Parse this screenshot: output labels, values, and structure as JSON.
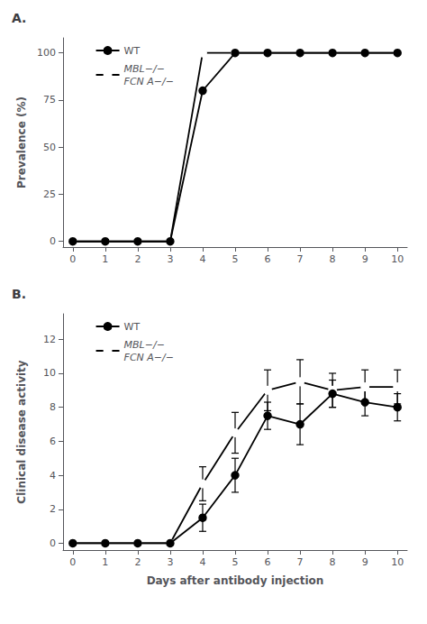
{
  "chart_data": [
    {
      "type": "line",
      "title": "A.",
      "ylabel": "Prevalence (%)",
      "x": [
        0,
        1,
        2,
        3,
        4,
        5,
        6,
        7,
        8,
        9,
        10
      ],
      "series": [
        {
          "name": "WT",
          "color": "black",
          "marker": "circle",
          "values": [
            0,
            0,
            0,
            0,
            80,
            100,
            100,
            100,
            100,
            100,
            100
          ]
        },
        {
          "name": "MBL−/−\nFCN A−/−",
          "color": "black",
          "marker": "open circle",
          "values": [
            0,
            0,
            0,
            0,
            100,
            100,
            100,
            100,
            100,
            100,
            100
          ]
        }
      ],
      "xlim": [
        -0.3,
        10.3
      ],
      "xticks": [
        0,
        1,
        2,
        3,
        4,
        5,
        6,
        7,
        8,
        9,
        10
      ],
      "ylim": [
        -3,
        108
      ],
      "yticks": [
        0,
        25,
        50,
        75,
        100
      ],
      "grid": false,
      "legend": "upper left"
    },
    {
      "type": "line",
      "title": "B.",
      "ylabel": "Clinical disease activity",
      "xlabel": "Days after antibody injection",
      "x": [
        0,
        1,
        2,
        3,
        4,
        5,
        6,
        7,
        8,
        9,
        10
      ],
      "series": [
        {
          "name": "WT",
          "color": "black",
          "marker": "circle",
          "values": [
            0,
            0,
            0,
            0,
            1.5,
            4.0,
            7.5,
            7.0,
            8.8,
            8.3,
            8.0
          ],
          "errors": [
            0,
            0,
            0,
            0,
            0.8,
            1.0,
            0.8,
            1.2,
            0.8,
            0.8,
            0.8
          ]
        },
        {
          "name": "MBL−/−\nFCN A−/−",
          "color": "black",
          "marker": "open circle",
          "values": [
            0,
            0,
            0,
            0,
            3.5,
            6.5,
            9.0,
            9.5,
            9.0,
            9.2,
            9.2
          ],
          "errors": [
            0,
            0,
            0,
            0,
            1.0,
            1.2,
            1.2,
            1.3,
            1.0,
            1.0,
            1.0
          ]
        }
      ],
      "xlim": [
        -0.3,
        10.3
      ],
      "xticks": [
        0,
        1,
        2,
        3,
        4,
        5,
        6,
        7,
        8,
        9,
        10
      ],
      "ylim": [
        -0.4,
        13.5
      ],
      "yticks": [
        0,
        2,
        4,
        6,
        8,
        10,
        12
      ],
      "grid": false,
      "legend": "upper left"
    }
  ]
}
